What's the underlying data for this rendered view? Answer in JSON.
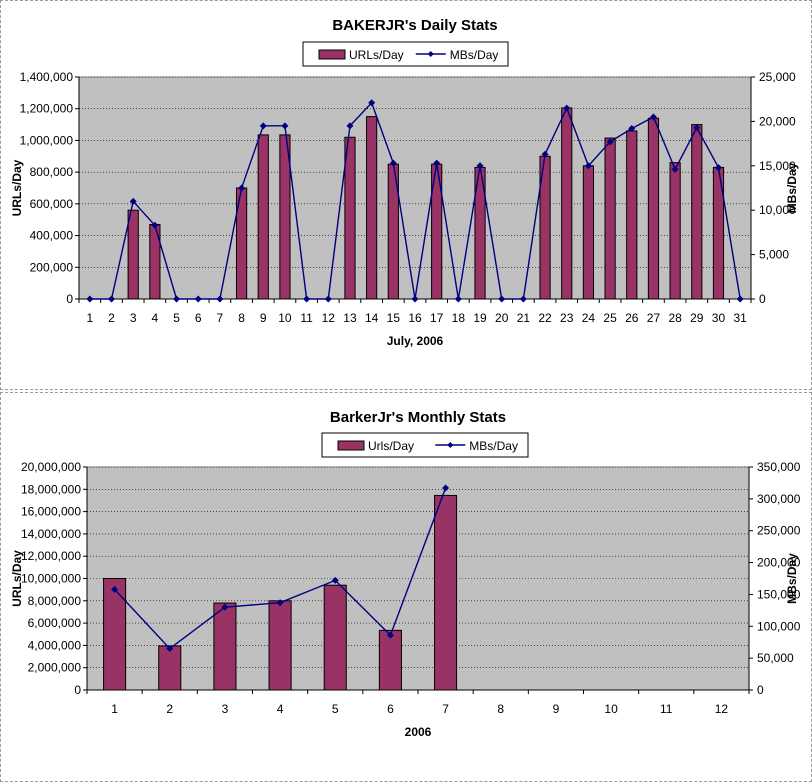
{
  "colors": {
    "bar_fill": "#993366",
    "bar_stroke": "#000000",
    "line": "#000080",
    "plot_bg": "#c0c0c0",
    "grid": "#000000"
  },
  "chart_data": [
    {
      "type": "bar+line",
      "title": "BAKERJR's Daily Stats",
      "xlabel": "July, 2006",
      "ylabel": "URLs/Day",
      "y2label": "MBs/Day",
      "categories": [
        "1",
        "2",
        "3",
        "4",
        "5",
        "6",
        "7",
        "8",
        "9",
        "10",
        "11",
        "12",
        "13",
        "14",
        "15",
        "16",
        "17",
        "18",
        "19",
        "20",
        "21",
        "22",
        "23",
        "24",
        "25",
        "26",
        "27",
        "28",
        "29",
        "30",
        "31"
      ],
      "ylim": [
        0,
        1400000
      ],
      "y2lim": [
        0,
        25000
      ],
      "yticks": [
        "0",
        "200,000",
        "400,000",
        "600,000",
        "800,000",
        "1,000,000",
        "1,200,000",
        "1,400,000"
      ],
      "y2ticks": [
        "0",
        "5,000",
        "10,000",
        "15,000",
        "20,000",
        "25,000"
      ],
      "legend": "top-center",
      "grid": true,
      "series": [
        {
          "name": "URLs/Day",
          "type": "bar",
          "axis": "left",
          "values": [
            0,
            0,
            560000,
            470000,
            0,
            0,
            0,
            700000,
            1035000,
            1035000,
            0,
            0,
            1020000,
            1150000,
            850000,
            0,
            850000,
            0,
            830000,
            0,
            0,
            900000,
            1205000,
            840000,
            1015000,
            1060000,
            1140000,
            860000,
            1100000,
            830000,
            0
          ]
        },
        {
          "name": "MBs/Day",
          "type": "line",
          "axis": "right",
          "values": [
            0,
            0,
            11000,
            8300,
            0,
            0,
            0,
            12500,
            19500,
            19500,
            0,
            0,
            19500,
            22100,
            15300,
            0,
            15300,
            0,
            15000,
            0,
            0,
            16300,
            21500,
            15000,
            17700,
            19200,
            20500,
            14600,
            19300,
            14800,
            0
          ]
        }
      ]
    },
    {
      "type": "bar+line",
      "title": "BarkerJr's Monthly Stats",
      "xlabel": "2006",
      "ylabel": "URLs/Day",
      "y2label": "MBs/Day",
      "categories": [
        "1",
        "2",
        "3",
        "4",
        "5",
        "6",
        "7",
        "8",
        "9",
        "10",
        "11",
        "12"
      ],
      "ylim": [
        0,
        20000000
      ],
      "y2lim": [
        0,
        350000
      ],
      "yticks": [
        "0",
        "2,000,000",
        "4,000,000",
        "6,000,000",
        "8,000,000",
        "10,000,000",
        "12,000,000",
        "14,000,000",
        "16,000,000",
        "18,000,000",
        "20,000,000"
      ],
      "y2ticks": [
        "0",
        "50,000",
        "100,000",
        "150,000",
        "200,000",
        "250,000",
        "300,000",
        "350,000"
      ],
      "legend": "top-center",
      "grid": true,
      "series": [
        {
          "name": "Urls/Day",
          "type": "bar",
          "axis": "left",
          "values": [
            10000000,
            3950000,
            7800000,
            8000000,
            9400000,
            5350000,
            17450000,
            null,
            null,
            null,
            null,
            null
          ]
        },
        {
          "name": "MBs/Day",
          "type": "line",
          "axis": "right",
          "values": [
            158000,
            65000,
            130000,
            137000,
            172000,
            86000,
            317000,
            null,
            null,
            null,
            null,
            null
          ]
        }
      ]
    }
  ]
}
